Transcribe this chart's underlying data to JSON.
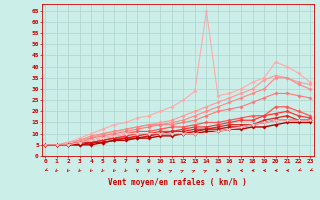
{
  "bg_color": "#cceee8",
  "grid_color": "#aad4ce",
  "xlabel": "Vent moyen/en rafales ( km/h )",
  "tick_color": "#cc0000",
  "x_ticks": [
    0,
    1,
    2,
    3,
    4,
    5,
    6,
    7,
    8,
    9,
    10,
    11,
    12,
    13,
    14,
    15,
    16,
    17,
    18,
    19,
    20,
    21,
    22,
    23
  ],
  "y_ticks": [
    0,
    5,
    10,
    15,
    20,
    25,
    30,
    35,
    40,
    45,
    50,
    55,
    60,
    65
  ],
  "xlim": [
    -0.3,
    23.3
  ],
  "ylim": [
    0,
    68
  ],
  "series": [
    {
      "y": [
        5,
        5,
        6,
        8,
        10,
        12,
        14,
        15,
        17,
        18,
        20,
        22,
        25,
        29,
        65,
        27,
        28,
        30,
        33,
        35,
        42,
        40,
        37,
        33
      ],
      "color": "#ffaaaa",
      "lw": 0.8,
      "marker": "D",
      "ms": 1.8
    },
    {
      "y": [
        5,
        5,
        6,
        7,
        8,
        10,
        11,
        12,
        13,
        14,
        15,
        16,
        18,
        20,
        22,
        24,
        26,
        28,
        30,
        34,
        36,
        35,
        33,
        32
      ],
      "color": "#ff9999",
      "lw": 0.8,
      "marker": "D",
      "ms": 1.8
    },
    {
      "y": [
        5,
        5,
        5,
        7,
        9,
        10,
        11,
        12,
        13,
        14,
        14,
        15,
        16,
        18,
        20,
        22,
        24,
        26,
        28,
        30,
        35,
        35,
        32,
        30
      ],
      "color": "#ff8888",
      "lw": 0.8,
      "marker": "D",
      "ms": 1.8
    },
    {
      "y": [
        5,
        5,
        5,
        6,
        8,
        9,
        10,
        11,
        12,
        13,
        14,
        14,
        15,
        16,
        18,
        20,
        21,
        22,
        24,
        26,
        28,
        28,
        27,
        26
      ],
      "color": "#ff7777",
      "lw": 0.8,
      "marker": "D",
      "ms": 1.8
    },
    {
      "y": [
        5,
        5,
        5,
        6,
        7,
        8,
        9,
        10,
        11,
        11,
        12,
        13,
        13,
        14,
        15,
        15,
        16,
        17,
        18,
        18,
        22,
        22,
        20,
        18
      ],
      "color": "#ff5555",
      "lw": 0.9,
      "marker": "D",
      "ms": 1.8
    },
    {
      "y": [
        5,
        5,
        5,
        6,
        6,
        7,
        8,
        9,
        10,
        10,
        11,
        11,
        12,
        13,
        13,
        14,
        15,
        16,
        16,
        18,
        19,
        20,
        18,
        17
      ],
      "color": "#ff3333",
      "lw": 0.9,
      "marker": "D",
      "ms": 1.8
    },
    {
      "y": [
        5,
        5,
        5,
        6,
        6,
        7,
        8,
        8,
        9,
        10,
        10,
        11,
        11,
        12,
        12,
        13,
        14,
        14,
        14,
        16,
        17,
        18,
        16,
        16
      ],
      "color": "#dd2222",
      "lw": 0.9,
      "marker": "D",
      "ms": 1.8
    },
    {
      "y": [
        5,
        5,
        5,
        5,
        6,
        6,
        7,
        8,
        8,
        9,
        10,
        10,
        10,
        11,
        12,
        12,
        13,
        13,
        14,
        15,
        16,
        16,
        16,
        16
      ],
      "color": "#cc1111",
      "lw": 1.0,
      "marker": "D",
      "ms": 1.8
    },
    {
      "y": [
        5,
        5,
        5,
        5,
        5,
        6,
        7,
        7,
        8,
        8,
        9,
        9,
        10,
        10,
        11,
        11,
        12,
        12,
        13,
        13,
        14,
        15,
        15,
        15
      ],
      "color": "#bb0000",
      "lw": 1.0,
      "marker": "D",
      "ms": 1.8
    },
    {
      "y": [
        5,
        5,
        5,
        6,
        7,
        8,
        9,
        10,
        10,
        10,
        10,
        10,
        10,
        10,
        10,
        11,
        12,
        13,
        14,
        15,
        16,
        16,
        16,
        16
      ],
      "color": "#ffcccc",
      "lw": 0.7,
      "marker": "D",
      "ms": 1.5
    }
  ],
  "wind_directions": [
    225,
    200,
    200,
    200,
    200,
    200,
    200,
    200,
    180,
    180,
    90,
    45,
    45,
    45,
    45,
    90,
    90,
    270,
    270,
    270,
    270,
    270,
    225,
    225
  ]
}
